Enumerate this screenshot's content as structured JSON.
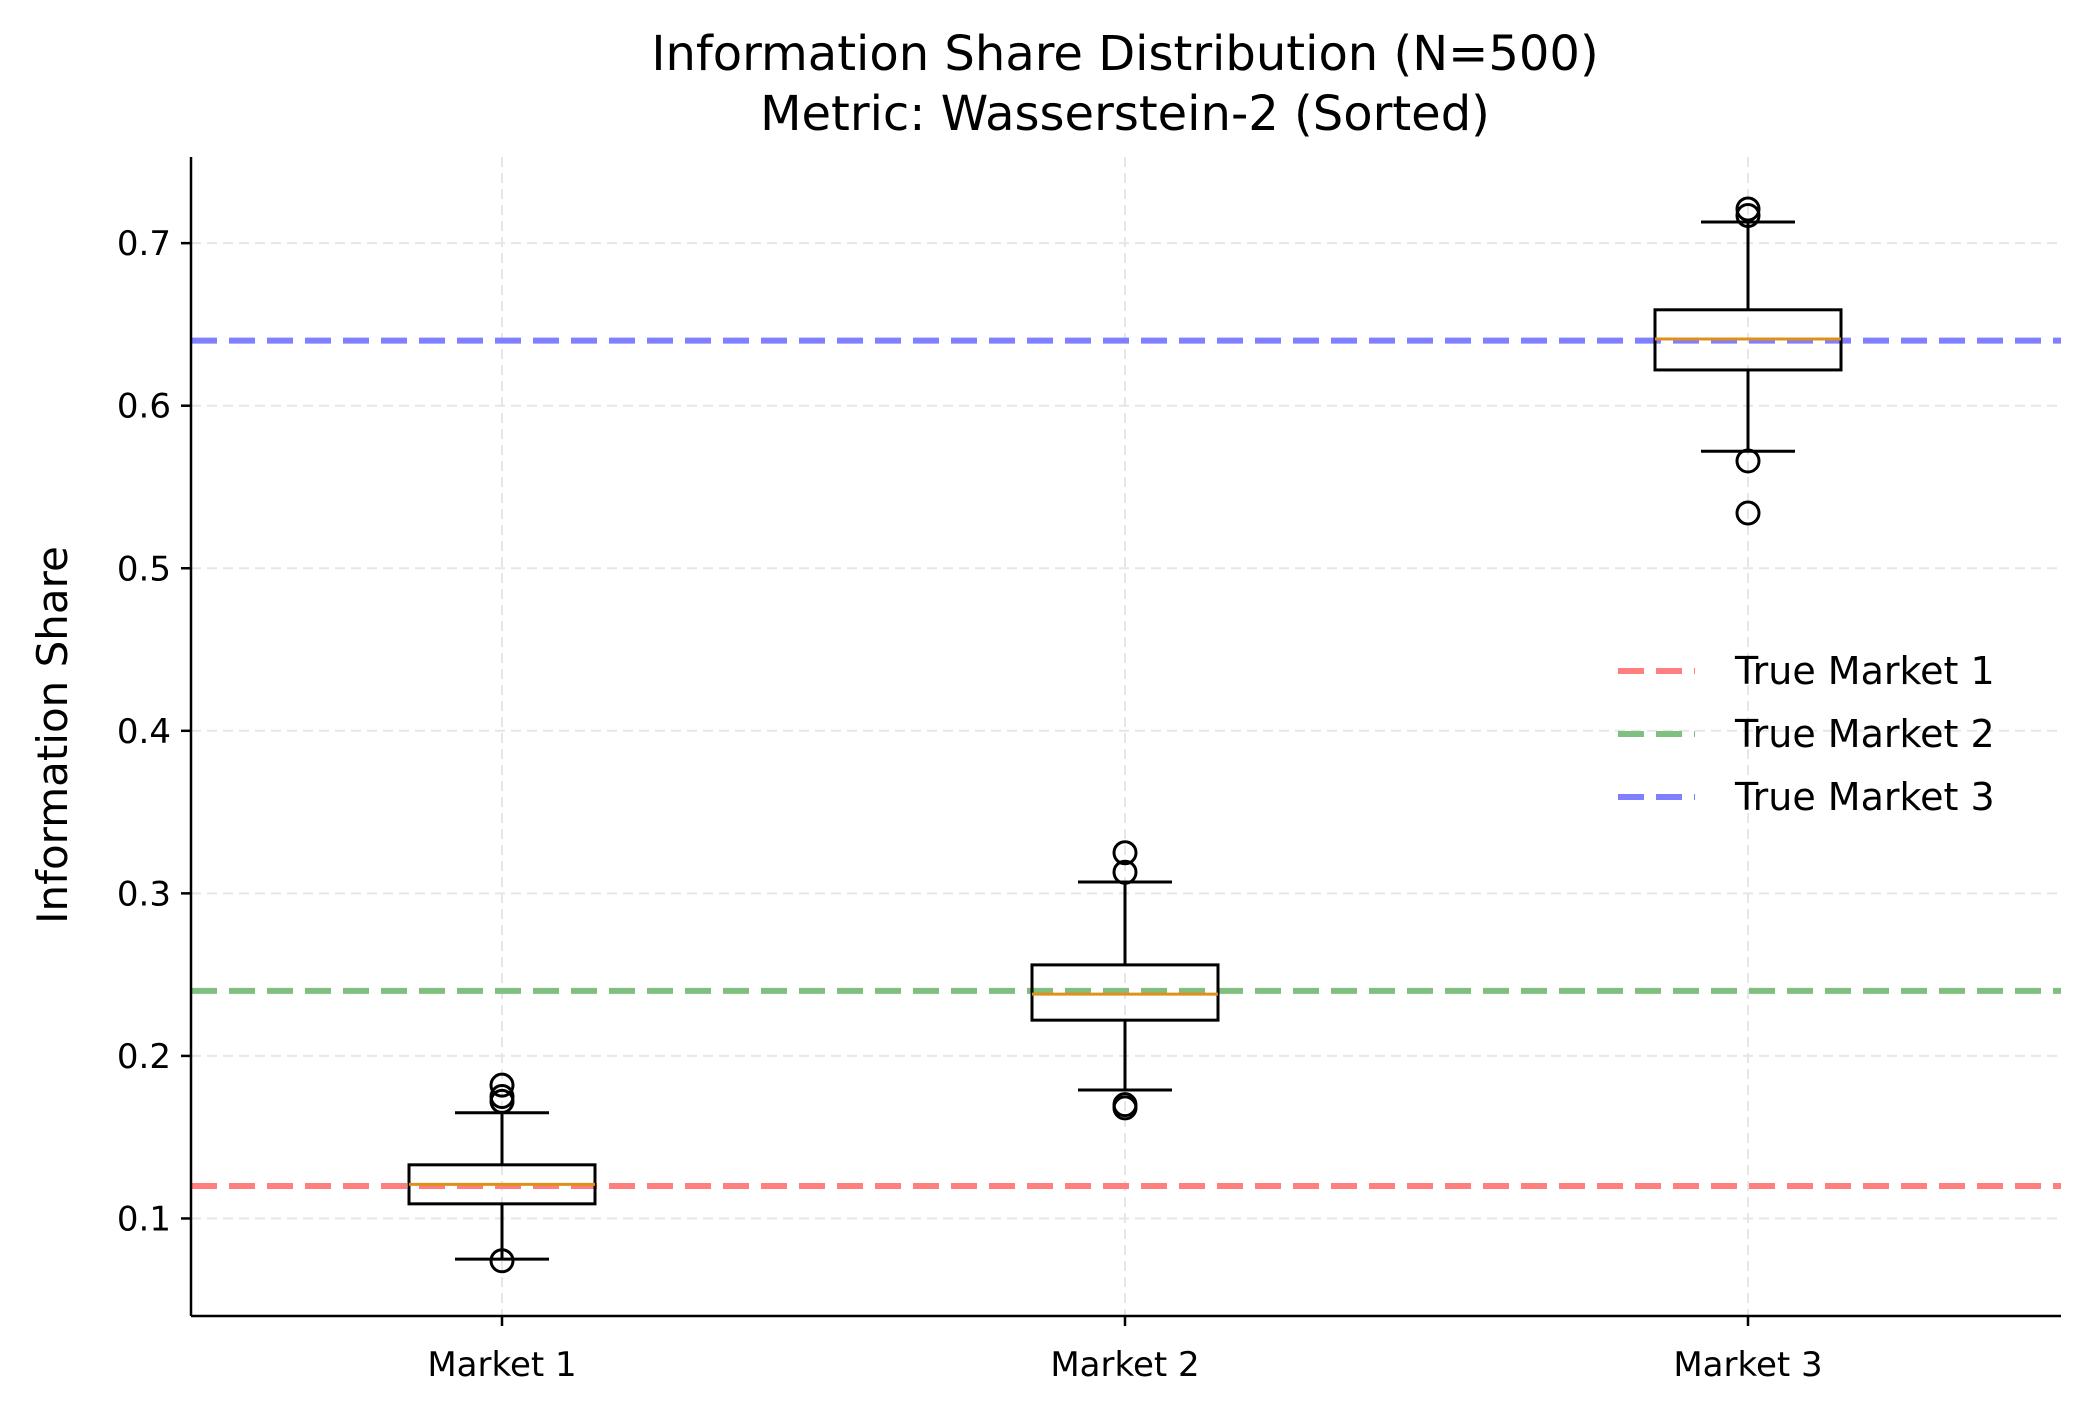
{
  "chart_data": {
    "type": "box",
    "title": "Information Share Distribution (N=500)",
    "subtitle": "Metric: Wasserstein-2 (Sorted)",
    "xlabel": "",
    "ylabel": "Information Share",
    "ylim": [
      0.04,
      0.753
    ],
    "yticks": [
      0.1,
      0.2,
      0.3,
      0.4,
      0.5,
      0.6,
      0.7
    ],
    "ytick_labels": [
      "0.1",
      "0.2",
      "0.3",
      "0.4",
      "0.5",
      "0.6",
      "0.7"
    ],
    "categories": [
      "Market 1",
      "Market 2",
      "Market 3"
    ],
    "grid": true,
    "legend_position": "center-right",
    "boxes": [
      {
        "q1": 0.109,
        "median": 0.121,
        "q3": 0.133,
        "whisker_low": 0.075,
        "whisker_high": 0.165,
        "outliers": [
          0.074,
          0.172,
          0.175,
          0.182
        ]
      },
      {
        "q1": 0.222,
        "median": 0.238,
        "q3": 0.256,
        "whisker_low": 0.179,
        "whisker_high": 0.307,
        "outliers": [
          0.168,
          0.17,
          0.313,
          0.325
        ]
      },
      {
        "q1": 0.622,
        "median": 0.641,
        "q3": 0.659,
        "whisker_low": 0.572,
        "whisker_high": 0.713,
        "outliers": [
          0.534,
          0.566,
          0.717,
          0.721
        ]
      }
    ],
    "reference_lines": [
      {
        "name": "True Market 1",
        "value": 0.12,
        "color": "#ff7f7f"
      },
      {
        "name": "True Market 2",
        "value": 0.24,
        "color": "#7fbf7f"
      },
      {
        "name": "True Market 3",
        "value": 0.64,
        "color": "#7f7fff"
      }
    ],
    "colors": {
      "box": "#000000",
      "median": "#e0901a",
      "grid": "#e6e6e6"
    }
  }
}
